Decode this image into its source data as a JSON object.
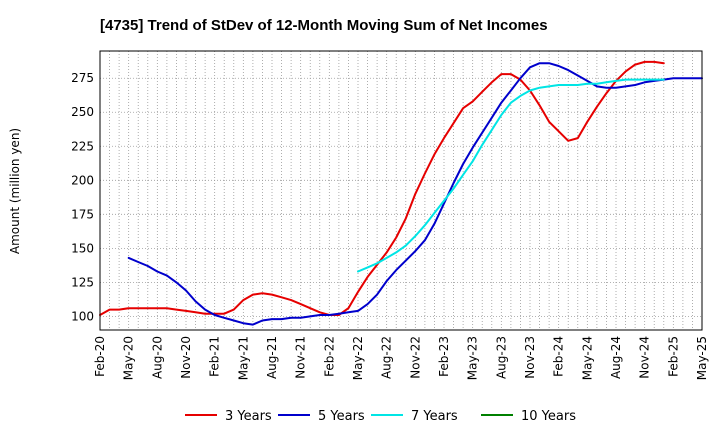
{
  "chart_data": {
    "type": "line",
    "title": "[4735]  Trend of StDev of 12-Month Moving Sum of Net Incomes",
    "xlabel": "",
    "ylabel": "Amount (million yen)",
    "ylim": [
      90,
      295
    ],
    "y_ticks": [
      100,
      125,
      150,
      175,
      200,
      225,
      250,
      275
    ],
    "x_tick_labels": [
      "Feb-20",
      "May-20",
      "Aug-20",
      "Nov-20",
      "Feb-21",
      "May-21",
      "Aug-21",
      "Nov-21",
      "Feb-22",
      "May-22",
      "Aug-22",
      "Nov-22",
      "Feb-23",
      "May-23",
      "Aug-23",
      "Nov-23",
      "Feb-24",
      "May-24",
      "Aug-24",
      "Nov-24",
      "Feb-25",
      "May-25"
    ],
    "grid": true,
    "legend_position": "bottom",
    "series": [
      {
        "name": "3 Years",
        "color": "#e60000",
        "start_month": "Feb-20",
        "values": [
          101,
          105,
          105,
          106,
          106,
          106,
          106,
          106,
          105,
          104,
          103,
          102,
          102,
          102,
          105,
          112,
          116,
          117,
          116,
          114,
          112,
          109,
          106,
          103,
          101,
          101,
          106,
          118,
          129,
          138,
          147,
          158,
          172,
          190,
          205,
          219,
          231,
          242,
          253,
          258,
          265,
          272,
          278,
          278,
          274,
          266,
          255,
          243,
          236,
          229,
          231,
          243,
          254,
          264,
          273,
          280,
          285,
          287,
          287,
          286
        ]
      },
      {
        "name": "5 Years",
        "color": "#0000cc",
        "start_month": "May-20",
        "values": [
          143,
          140,
          137,
          133,
          130,
          125,
          119,
          111,
          105,
          101,
          99,
          97,
          95,
          94,
          97,
          98,
          98,
          99,
          99,
          100,
          101,
          101,
          102,
          103,
          104,
          109,
          116,
          126,
          134,
          141,
          148,
          156,
          168,
          183,
          198,
          212,
          224,
          235,
          246,
          257,
          266,
          275,
          283,
          286,
          286,
          284,
          281,
          277,
          273,
          269,
          268,
          268,
          269,
          270,
          272,
          273,
          274,
          275,
          275,
          275,
          275
        ]
      },
      {
        "name": "7 Years",
        "color": "#00e5e5",
        "start_month": "May-22",
        "values": [
          133,
          136,
          139,
          143,
          147,
          152,
          159,
          167,
          176,
          185,
          194,
          204,
          214,
          226,
          237,
          248,
          257,
          262,
          266,
          268,
          269,
          270,
          270,
          270,
          271,
          271,
          272,
          273,
          274,
          274,
          274,
          274,
          274
        ]
      },
      {
        "name": "10 Years",
        "color": "#008000",
        "start_month": "",
        "values": []
      }
    ]
  }
}
